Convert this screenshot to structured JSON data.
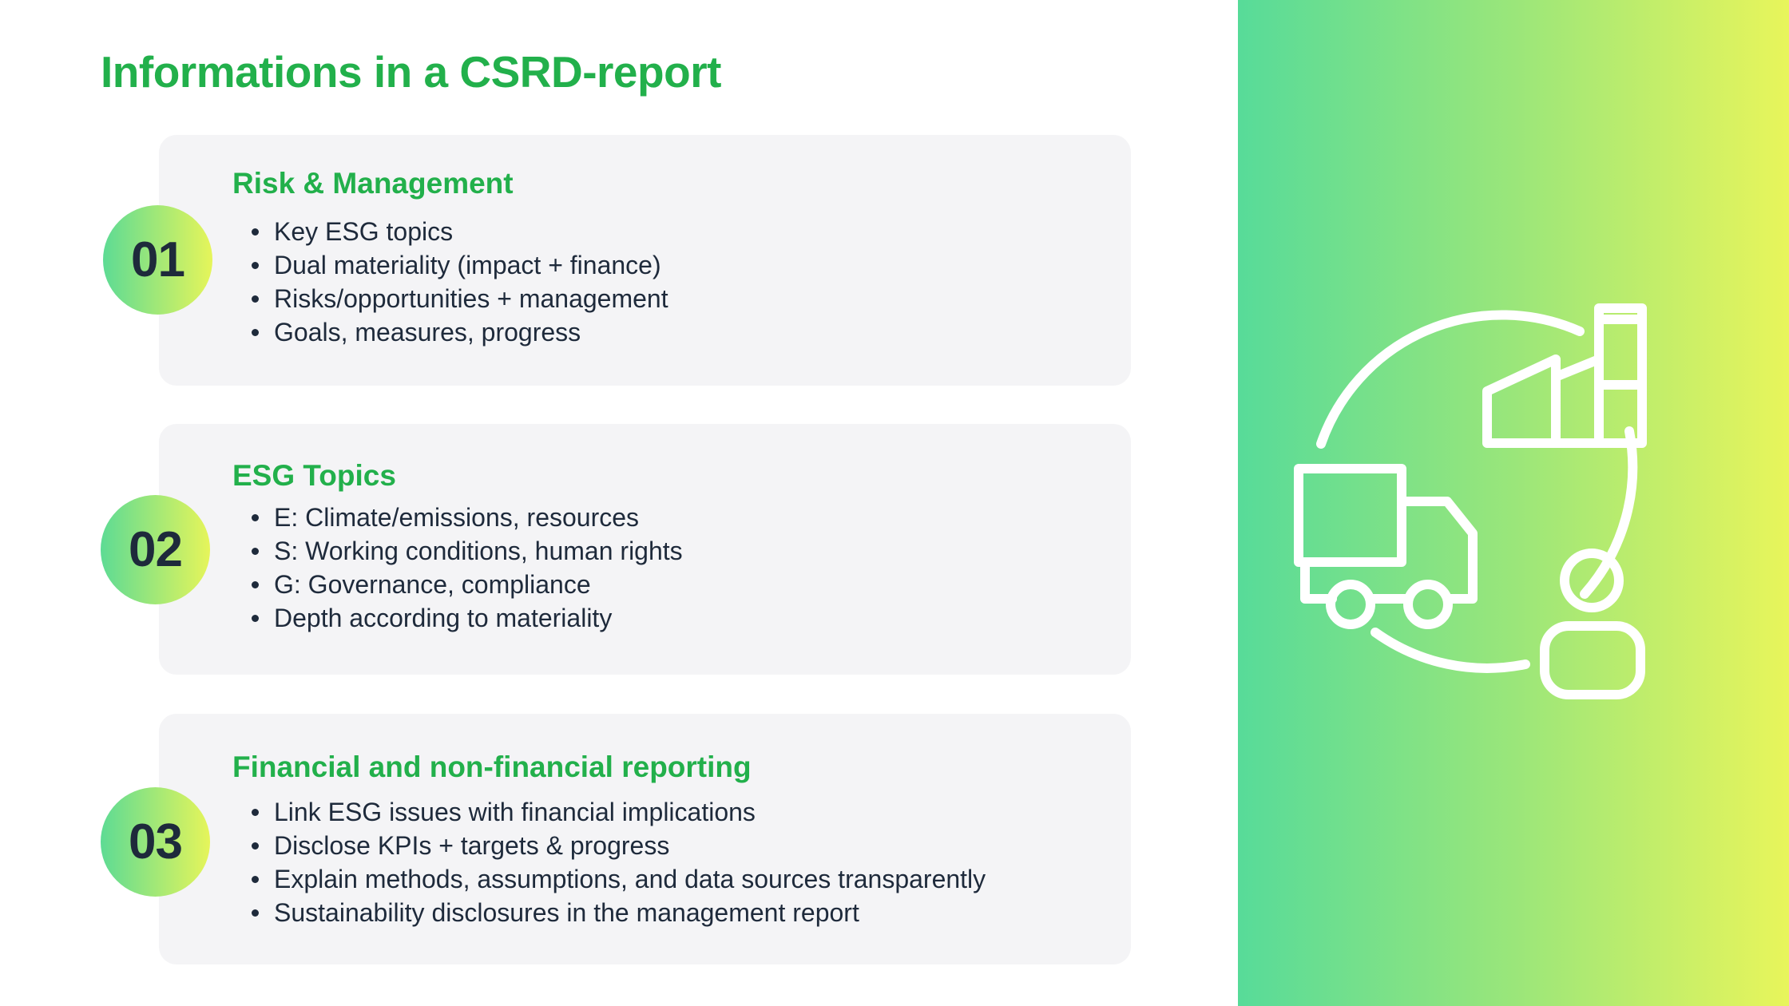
{
  "title": "Informations in a CSRD-report",
  "sections": [
    {
      "number": "01",
      "heading": "Risk & Management",
      "items": [
        "Key ESG topics",
        "Dual materiality (impact + finance)",
        "Risks/opportunities + management",
        "Goals, measures, progress"
      ]
    },
    {
      "number": "02",
      "heading": "ESG Topics",
      "items": [
        "E: Climate/emissions, resources",
        "S: Working conditions, human rights",
        "G: Governance, compliance",
        "Depth according to materiality"
      ]
    },
    {
      "number": "03",
      "heading": "Financial and non-financial reporting",
      "items": [
        "Link ESG issues with financial implications",
        "Disclose KPIs + targets & progress",
        "Explain methods, assumptions, and data sources transparently",
        "Sustainability disclosures in the management report"
      ]
    }
  ],
  "colors": {
    "accent": "#22b04b",
    "text": "#1e2a3b",
    "card_bg": "#f4f4f6",
    "gradient_start": "#57db99",
    "gradient_end": "#e8f55b"
  },
  "illustration": {
    "icons": [
      "cycle-arrows-icon",
      "factory-icon",
      "truck-icon",
      "person-icon"
    ]
  }
}
